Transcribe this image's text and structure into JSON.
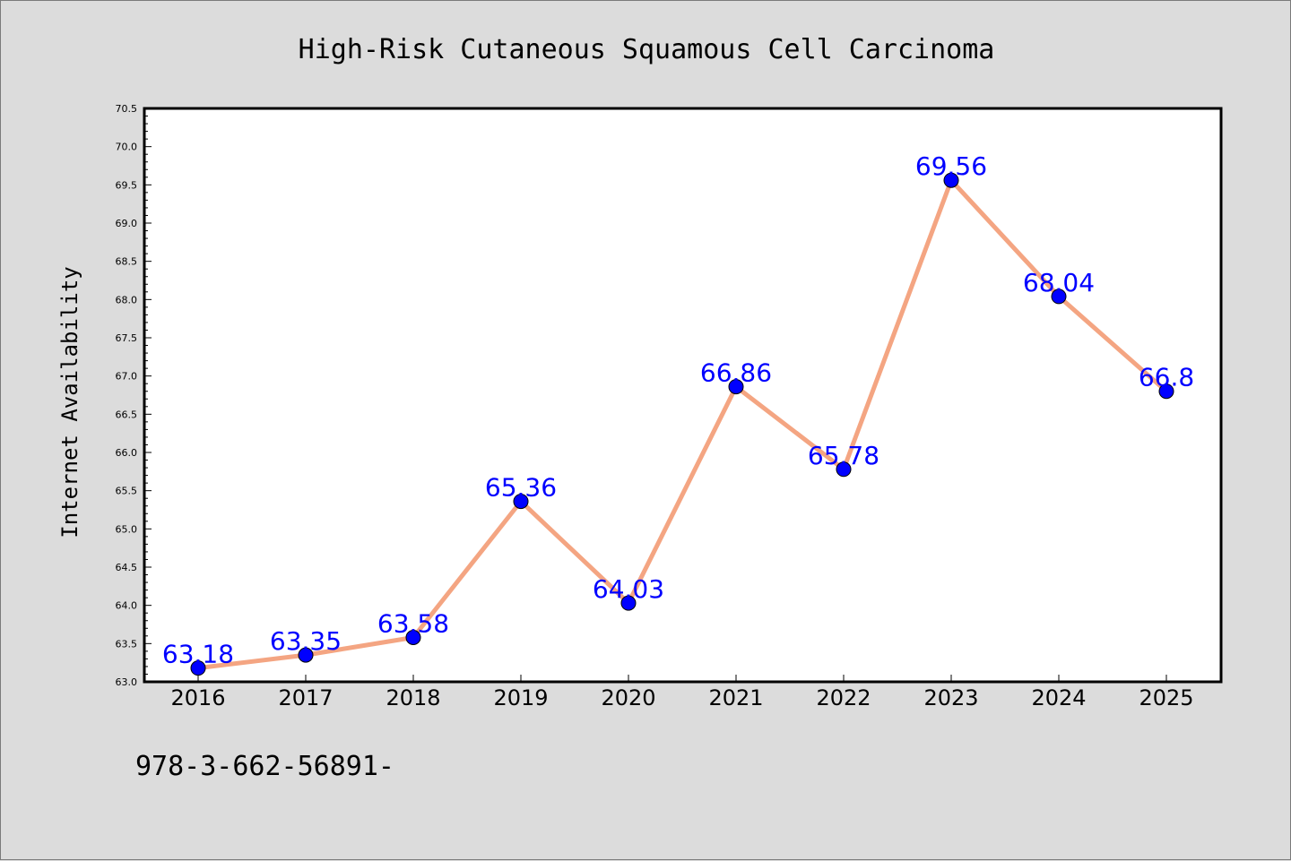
{
  "colors": {
    "background": "#dcdcdc",
    "plot_background": "#ffffff",
    "line": "#f4a582",
    "marker": "#0000ff",
    "label": "#0000ff",
    "text": "#000000"
  },
  "footer": {
    "text": "978-3-662-56891-"
  },
  "chart_data": {
    "type": "line",
    "title": "High-Risk Cutaneous Squamous Cell Carcinoma",
    "xlabel": "",
    "ylabel": "Internet Availability",
    "categories": [
      "2016",
      "2017",
      "2018",
      "2019",
      "2020",
      "2021",
      "2022",
      "2023",
      "2024",
      "2025"
    ],
    "series": [
      {
        "values": [
          63.18,
          63.35,
          63.58,
          65.36,
          64.03,
          66.86,
          65.78,
          69.56,
          68.04,
          66.8
        ],
        "data_labels": [
          "63.18",
          "63.35",
          "63.58",
          "65.36",
          "64.03",
          "66.86",
          "65.78",
          "69.56",
          "68.04",
          "66.8"
        ]
      }
    ],
    "ylim": [
      63.0,
      70.5
    ],
    "yticks": [
      "63.0",
      "63.5",
      "64.0",
      "64.5",
      "65.0",
      "65.5",
      "66.0",
      "66.5",
      "67.0",
      "67.5",
      "68.0",
      "68.5",
      "69.0",
      "69.5",
      "70.0",
      "70.5"
    ],
    "grid": false,
    "legend": "none"
  }
}
